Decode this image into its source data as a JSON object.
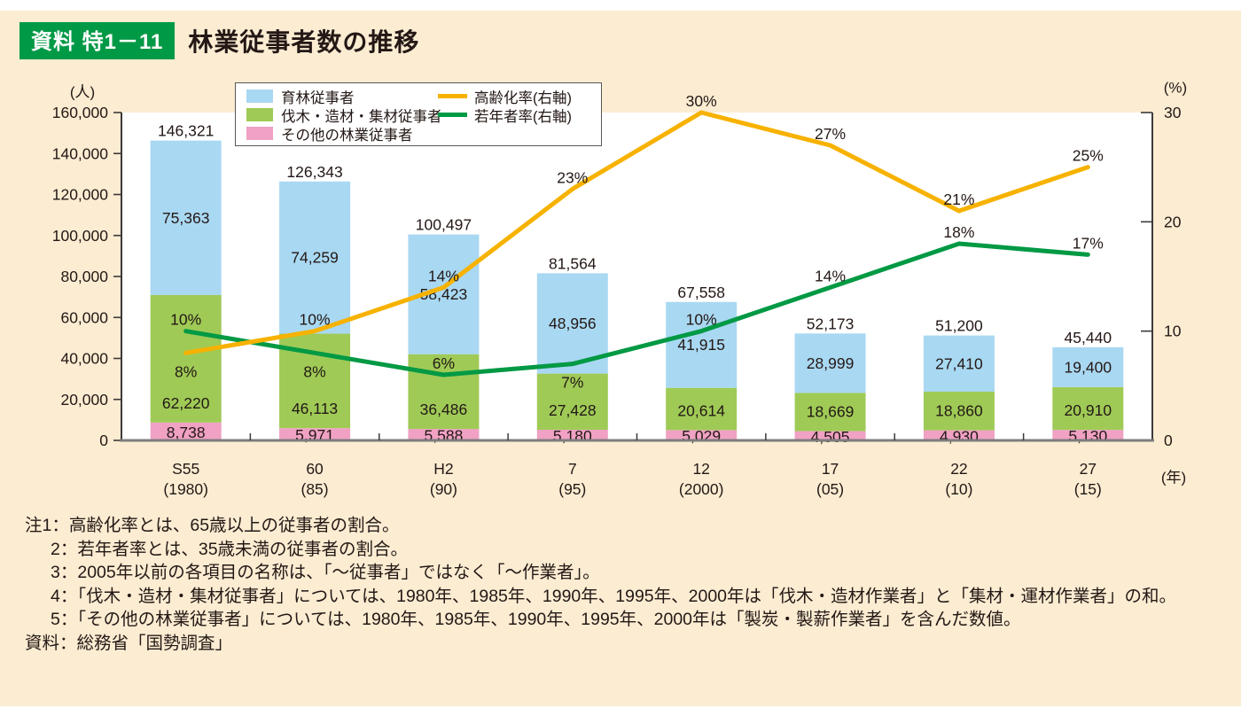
{
  "header": {
    "badge_label": "資料 特1－11",
    "title": "林業従事者数の推移"
  },
  "units": {
    "left": "(人)",
    "right": "(%)",
    "x": "(年)"
  },
  "legend": {
    "bars": [
      {
        "label": "育林従事者",
        "color": "#a9d8f2"
      },
      {
        "label": "伐木・造材・集材従事者",
        "color": "#9fca56"
      },
      {
        "label": "その他の林業従事者",
        "color": "#f0a1c4"
      }
    ],
    "lines": [
      {
        "label": "高齢化率(右軸)",
        "color": "#f7b200"
      },
      {
        "label": "若年者率(右軸)",
        "color": "#009944"
      }
    ]
  },
  "chart_data": {
    "type": "bar",
    "subtype": "stacked-bars-with-lines",
    "categories": [
      {
        "era": "S55",
        "west": "(1980)"
      },
      {
        "era": "60",
        "west": "(85)"
      },
      {
        "era": "H2",
        "west": "(90)"
      },
      {
        "era": "7",
        "west": "(95)"
      },
      {
        "era": "12",
        "west": "(2000)"
      },
      {
        "era": "17",
        "west": "(05)"
      },
      {
        "era": "22",
        "west": "(10)"
      },
      {
        "era": "27",
        "west": "(15)"
      }
    ],
    "bar_series": [
      {
        "name": "育林従事者",
        "color": "#a9d8f2",
        "values": [
          75363,
          74259,
          58423,
          48956,
          41915,
          28999,
          27410,
          19400
        ]
      },
      {
        "name": "伐木・造材・集材従事者",
        "color": "#9fca56",
        "values": [
          62220,
          46113,
          36486,
          27428,
          20614,
          18669,
          18860,
          20910
        ]
      },
      {
        "name": "その他の林業従事者",
        "color": "#f0a1c4",
        "values": [
          8738,
          5971,
          5588,
          5180,
          5029,
          4505,
          4930,
          5130
        ]
      }
    ],
    "totals": [
      146321,
      126343,
      100497,
      81564,
      67558,
      52173,
      51200,
      45440
    ],
    "line_series": [
      {
        "name": "高齢化率(右軸)",
        "color": "#f7b200",
        "values": [
          8,
          10,
          14,
          23,
          30,
          27,
          21,
          25
        ],
        "label_side": [
          "below",
          "above",
          "above",
          "above",
          "above",
          "above",
          "above",
          "above"
        ]
      },
      {
        "name": "若年者率(右軸)",
        "color": "#009944",
        "values": [
          10,
          8,
          6,
          7,
          10,
          14,
          18,
          17
        ],
        "label_side": [
          "above",
          "below",
          "above",
          "below",
          "above",
          "above",
          "above",
          "above"
        ]
      }
    ],
    "left_axis": {
      "min": 0,
      "max": 160000,
      "step": 20000,
      "unit": "(人)"
    },
    "right_axis": {
      "min": 0,
      "max": 30,
      "step": 10,
      "unit": "(%)"
    },
    "grid": false,
    "legend_position": "top-left-inside"
  },
  "notes": [
    "注1：高齢化率とは、65歳以上の従事者の割合。",
    "2：若年者率とは、35歳未満の従事者の割合。",
    "3：2005年以前の各項目の名称は、「〜従事者」ではなく「〜作業者」。",
    "4：「伐木・造材・集材従事者」については、1980年、1985年、1990年、1995年、2000年は「伐木・造材作業者」と「集材・運材作業者」の和。",
    "5：「その他の林業従事者」については、1980年、1985年、1990年、1995年、2000年は「製炭・製薪作業者」を含んだ数値。"
  ],
  "source": "資料：総務省「国勢調査」"
}
